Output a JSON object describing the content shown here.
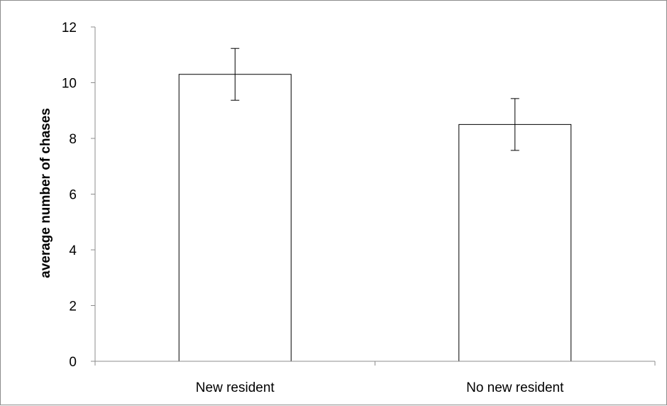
{
  "chart_data": {
    "type": "bar",
    "categories": [
      "New resident",
      "No new resident"
    ],
    "values": [
      10.3,
      8.5
    ],
    "error": [
      0.93,
      0.93
    ],
    "title": "",
    "xlabel": "",
    "ylabel": "average number of chases",
    "ylim": [
      0,
      12
    ],
    "yticks": [
      "0",
      "2",
      "4",
      "6",
      "8",
      "10",
      "12"
    ],
    "grid": false,
    "legend": "none",
    "colors": {
      "bar_fill": "#ffffff",
      "bar_stroke": "#000000",
      "axis": "#8c8c8c",
      "error_bar": "#000000"
    }
  }
}
